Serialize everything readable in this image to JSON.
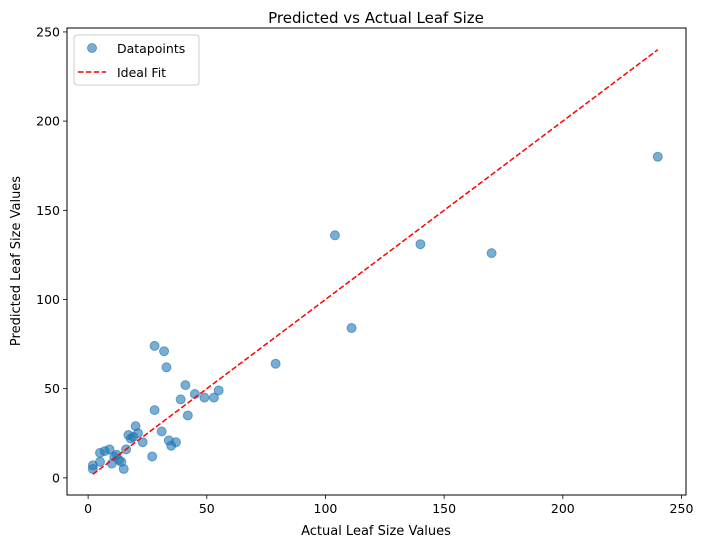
{
  "chart_data": {
    "type": "scatter",
    "title": "Predicted vs Actual Leaf Size",
    "xlabel": "Actual Leaf Size Values",
    "ylabel": "Predicted Leaf Size Values",
    "xlim": [
      -8.9,
      251.9
    ],
    "ylim": [
      -9.6,
      252.2
    ],
    "xticks": [
      0,
      50,
      100,
      150,
      200,
      250
    ],
    "yticks": [
      0,
      50,
      100,
      150,
      200,
      250
    ],
    "grid": false,
    "legend_position": "top-left",
    "series": [
      {
        "name": "Datapoints",
        "kind": "scatter",
        "color": "#1f77b4",
        "x": [
          2,
          2,
          5,
          5,
          7,
          9,
          10,
          11,
          12,
          13,
          14,
          15,
          16,
          17,
          18,
          19,
          20,
          21,
          23,
          27,
          28,
          28,
          31,
          32,
          33,
          34,
          35,
          37,
          39,
          41,
          42,
          45,
          49,
          53,
          55,
          79,
          104,
          111,
          140,
          170,
          240
        ],
        "y": [
          7,
          5,
          14,
          9,
          15,
          16,
          8,
          12,
          13,
          10,
          9,
          5,
          16,
          24,
          22,
          23,
          29,
          25,
          20,
          12,
          38,
          74,
          26,
          71,
          62,
          21,
          18,
          20,
          44,
          52,
          35,
          47,
          45,
          45,
          49,
          64,
          136,
          84,
          131,
          126,
          180
        ]
      },
      {
        "name": "Ideal Fit",
        "kind": "line",
        "color": "#ff0000",
        "x": [
          2,
          240
        ],
        "y": [
          2,
          240
        ]
      }
    ]
  }
}
